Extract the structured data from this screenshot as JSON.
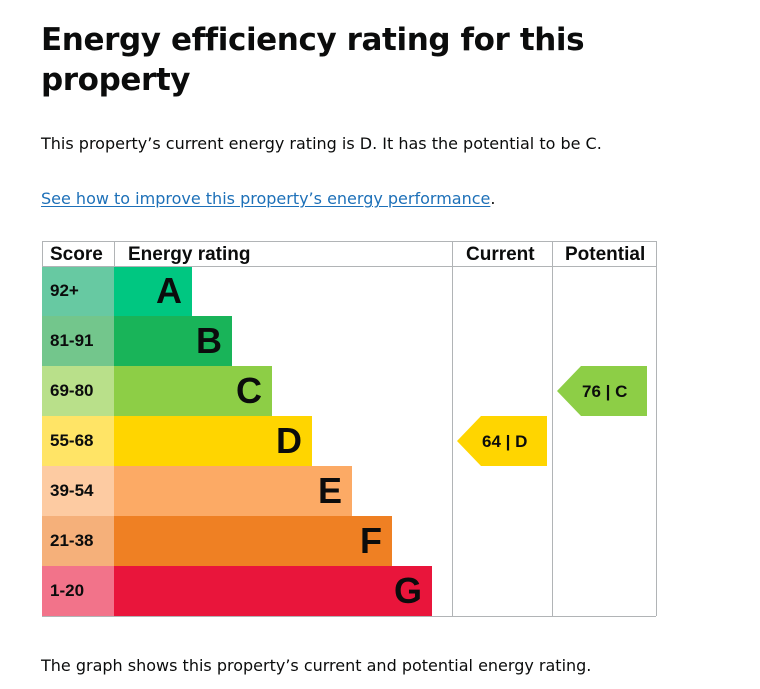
{
  "page": {
    "title": "Energy efficiency rating for this property",
    "intro": "This property’s current energy rating is D. It has the potential to be C.",
    "improve_link": "See how to improve this property’s energy performance",
    "improve_suffix": ".",
    "footnote": "The graph shows this property’s current and potential energy rating."
  },
  "chart_data": {
    "type": "bar",
    "headers": [
      "Score",
      "Energy rating",
      "Current",
      "Potential"
    ],
    "bands": [
      {
        "letter": "A",
        "score": "92+",
        "color": "#00c781",
        "score_color": "#67c9a2"
      },
      {
        "letter": "B",
        "score": "81-91",
        "color": "#19b459",
        "score_color": "#73c68c"
      },
      {
        "letter": "C",
        "score": "69-80",
        "color": "#8dce46",
        "score_color": "#b9e08a"
      },
      {
        "letter": "D",
        "score": "55-68",
        "color": "#ffd500",
        "score_color": "#ffe466"
      },
      {
        "letter": "E",
        "score": "39-54",
        "color": "#fcaa65",
        "score_color": "#fdcba2"
      },
      {
        "letter": "F",
        "score": "21-38",
        "color": "#ef8023",
        "score_color": "#f5b07a"
      },
      {
        "letter": "G",
        "score": "1-20",
        "color": "#e9153b",
        "score_color": "#f2738a"
      }
    ],
    "current": {
      "value": 64,
      "band": "D",
      "label": "64 | D",
      "color": "#ffd500"
    },
    "potential": {
      "value": 76,
      "band": "C",
      "label": "76 | C",
      "color": "#8dce46"
    }
  }
}
